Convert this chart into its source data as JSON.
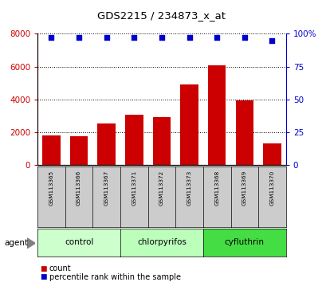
{
  "title": "GDS2215 / 234873_x_at",
  "samples": [
    "GSM113365",
    "GSM113366",
    "GSM113367",
    "GSM113371",
    "GSM113372",
    "GSM113373",
    "GSM113368",
    "GSM113369",
    "GSM113370"
  ],
  "counts": [
    1800,
    1750,
    2550,
    3050,
    2900,
    4900,
    6100,
    3950,
    1300
  ],
  "percentiles": [
    97,
    97,
    97,
    97,
    97,
    97,
    97,
    97,
    95
  ],
  "bar_color": "#cc0000",
  "dot_color": "#0000cc",
  "ylim_left": [
    0,
    8000
  ],
  "ylim_right": [
    0,
    100
  ],
  "yticks_left": [
    0,
    2000,
    4000,
    6000,
    8000
  ],
  "yticks_right": [
    0,
    25,
    50,
    75,
    100
  ],
  "groups": [
    {
      "label": "control",
      "indices": [
        0,
        1,
        2
      ],
      "color": "#ccffcc"
    },
    {
      "label": "chlorpyrifos",
      "indices": [
        3,
        4,
        5
      ],
      "color": "#bbffbb"
    },
    {
      "label": "cyfluthrin",
      "indices": [
        6,
        7,
        8
      ],
      "color": "#44dd44"
    }
  ],
  "tick_bg_color": "#cccccc",
  "legend_count_color": "#cc0000",
  "legend_pct_color": "#0000cc",
  "left_tick_color": "#cc0000",
  "right_tick_color": "#0000cc"
}
